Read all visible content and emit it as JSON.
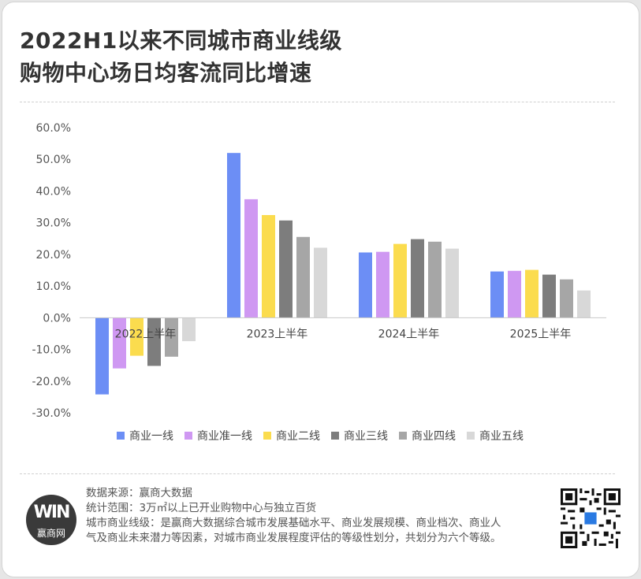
{
  "title": {
    "line1": "2022H1以来不同城市商业线级",
    "line2": "购物中心场日均客流同比增速"
  },
  "chart_data": {
    "type": "bar",
    "categories": [
      "2022上半年",
      "2023上半年",
      "2024上半年",
      "2025上半年"
    ],
    "series": [
      {
        "name": "商业一线",
        "color": "#6c8ef5",
        "values": [
          -24.2,
          52.0,
          20.6,
          14.6
        ]
      },
      {
        "name": "商业准一线",
        "color": "#cf98f2",
        "values": [
          -16.0,
          37.4,
          20.8,
          14.8
        ]
      },
      {
        "name": "商业二线",
        "color": "#fbdc4e",
        "values": [
          -12.0,
          32.4,
          23.3,
          15.1
        ]
      },
      {
        "name": "商业三线",
        "color": "#7d7d7d",
        "values": [
          -15.2,
          30.7,
          24.8,
          13.6
        ]
      },
      {
        "name": "商业四线",
        "color": "#a6a6a6",
        "values": [
          -12.3,
          25.5,
          24.0,
          12.1
        ]
      },
      {
        "name": "商业五线",
        "color": "#d8d8d8",
        "values": [
          -7.4,
          22.1,
          21.8,
          8.6
        ]
      }
    ],
    "yticks": [
      "60.0%",
      "50.0%",
      "40.0%",
      "30.0%",
      "20.0%",
      "10.0%",
      "0.0%",
      "-10.0%",
      "-20.0%",
      "-30.0%"
    ],
    "ylim": [
      -30,
      60
    ],
    "grid": false,
    "legend_position": "bottom"
  },
  "footer": {
    "source": "数据来源：赢商大数据",
    "scope": "统计范围：3万㎡以上已开业购物中心与独立百货",
    "definition": "城市商业线级：是赢商大数据综合城市发展基础水平、商业发展规模、商业档次、商业人气及商业未来潜力等因素，对城市商业发展程度评估的等级性划分，共划分为六个等级。"
  },
  "logo": {
    "mark": "WIN",
    "name": "赢商网"
  },
  "icons": {
    "qr": "qr-code-icon"
  }
}
